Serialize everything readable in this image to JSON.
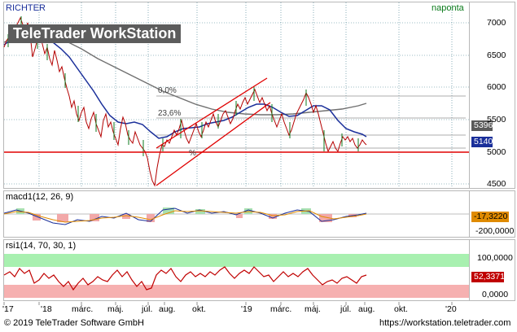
{
  "header": {
    "symbol": "RICHTER",
    "period": "naponta"
  },
  "watermark": "TeleTrader WorkStation",
  "main_chart": {
    "fib_levels": [
      "0,0%",
      "23,6%",
      "%"
    ],
    "price_axis": [
      "7000",
      "6500",
      "6000",
      "5500",
      "5000",
      "4500"
    ],
    "last_sma200": "5396",
    "last_close": "5140",
    "colors": {
      "price": "#b40000",
      "sma_fast": "#1a2f9a",
      "sma_slow": "#707070",
      "support": "#e00000",
      "channel": "#e00000",
      "grid": "#3c7a8a"
    }
  },
  "macd": {
    "title": "macd1(12, 26, 9)",
    "axis": [
      "-200,0000"
    ],
    "value": "-17,3220"
  },
  "rsi": {
    "title": "rsi1(14, 70, 30, 1)",
    "axis": [
      "100,0000",
      "0,0000"
    ],
    "value": "52,3371"
  },
  "time_axis": [
    "'17",
    "'18",
    "márc.",
    "máj.",
    "júl.",
    "aug.",
    "okt.",
    "'19",
    "márc.",
    "máj.",
    "júl.",
    "aug.",
    "okt.",
    "'20"
  ],
  "footer": {
    "copyright": "© 2019 TeleTrader Software GmbH",
    "url": "https://workstation.teletrader.com"
  }
}
